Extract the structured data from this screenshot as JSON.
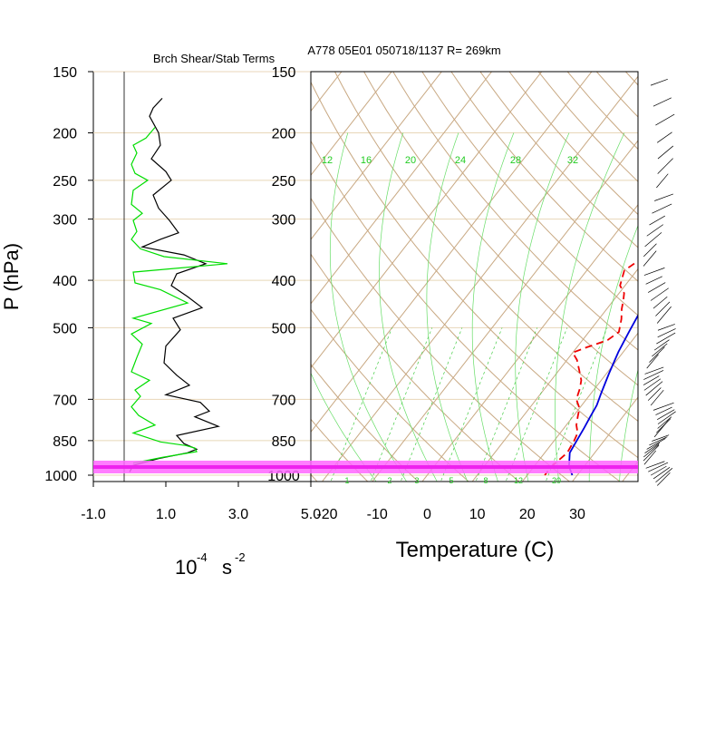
{
  "chart_data": [
    {
      "type": "line",
      "title": "Brch Shear/Stab Terms",
      "units_label": {
        "base": "10",
        "exp": "-4",
        "unit": "s",
        "unit_exp": "-2"
      },
      "ylabel": "P (hPa)",
      "xlim": [
        -1.0,
        5.0
      ],
      "ylim": [
        1050,
        150
      ],
      "yscale": "log",
      "xticks": [
        "-1.0",
        "1.0",
        "3.0",
        "5.0"
      ],
      "yticks": [
        "150",
        "200",
        "250",
        "300",
        "400",
        "500",
        "700",
        "850",
        "1000"
      ],
      "series": [
        {
          "color": "#000000",
          "points": [
            [
              0.9,
              170
            ],
            [
              0.65,
              178
            ],
            [
              0.55,
              185
            ],
            [
              0.8,
              200
            ],
            [
              0.85,
              212
            ],
            [
              0.6,
              226
            ],
            [
              1.0,
              240
            ],
            [
              1.15,
              250
            ],
            [
              0.65,
              268
            ],
            [
              0.8,
              285
            ],
            [
              1.1,
              302
            ],
            [
              1.35,
              320
            ],
            [
              0.85,
              330
            ],
            [
              0.35,
              342
            ],
            [
              1.5,
              355
            ],
            [
              2.1,
              370
            ],
            [
              1.3,
              388
            ],
            [
              1.15,
              410
            ],
            [
              1.6,
              432
            ],
            [
              2.0,
              455
            ],
            [
              1.2,
              478
            ],
            [
              1.4,
              505
            ],
            [
              1.0,
              545
            ],
            [
              0.95,
              590
            ],
            [
              1.3,
              625
            ],
            [
              1.65,
              655
            ],
            [
              1.0,
              685
            ],
            [
              1.95,
              710
            ],
            [
              2.2,
              740
            ],
            [
              1.8,
              760
            ],
            [
              2.45,
              795
            ],
            [
              1.3,
              830
            ],
            [
              1.5,
              862
            ],
            [
              1.85,
              885
            ],
            [
              1.6,
              900
            ],
            [
              0.8,
              925
            ],
            [
              0.1,
              955
            ],
            [
              0.0,
              985
            ]
          ]
        },
        {
          "color": "#00dd00",
          "points": [
            [
              0.7,
              195
            ],
            [
              0.45,
              205
            ],
            [
              0.1,
              212
            ],
            [
              0.2,
              220
            ],
            [
              0.05,
              232
            ],
            [
              0.15,
              242
            ],
            [
              0.5,
              250
            ],
            [
              0.1,
              262
            ],
            [
              0.05,
              280
            ],
            [
              0.35,
              292
            ],
            [
              0.1,
              302
            ],
            [
              0.2,
              318
            ],
            [
              0.05,
              330
            ],
            [
              0.3,
              345
            ],
            [
              0.95,
              358
            ],
            [
              2.7,
              370
            ],
            [
              0.1,
              385
            ],
            [
              0.15,
              405
            ],
            [
              0.85,
              418
            ],
            [
              1.6,
              445
            ],
            [
              0.1,
              478
            ],
            [
              0.6,
              490
            ],
            [
              0.05,
              515
            ],
            [
              0.35,
              540
            ],
            [
              0.2,
              575
            ],
            [
              0.05,
              615
            ],
            [
              0.55,
              640
            ],
            [
              0.15,
              670
            ],
            [
              0.3,
              690
            ],
            [
              0.05,
              725
            ],
            [
              0.25,
              755
            ],
            [
              0.7,
              790
            ],
            [
              0.1,
              820
            ],
            [
              0.85,
              855
            ],
            [
              1.55,
              870
            ],
            [
              1.8,
              880
            ],
            [
              1.85,
              895
            ],
            [
              0.9,
              920
            ],
            [
              0.1,
              945
            ]
          ]
        }
      ]
    },
    {
      "type": "line",
      "title": "A778 05E01 050718/1137 R= 269km",
      "xlabel": "Temperature (C)",
      "xlim": [
        -25,
        40
      ],
      "ylim": [
        1050,
        150
      ],
      "yscale": "log",
      "xticks": [
        "-20",
        "-10",
        "0",
        "10",
        "20",
        "30"
      ],
      "yticks": [
        "150",
        "200",
        "250",
        "300",
        "400",
        "500",
        "700",
        "850",
        "1000"
      ],
      "mixing_ratio_labels": [
        "12",
        "16",
        "20",
        "24",
        "28",
        "32"
      ],
      "mixing_ratio_bottom_labels": [
        "1",
        "2",
        "3",
        "5",
        "8",
        "12",
        "20"
      ],
      "series": [
        {
          "color": "#0000dd",
          "points": [
            [
              -2,
              168
            ],
            [
              0,
              182
            ],
            [
              2,
              200
            ],
            [
              4,
              220
            ],
            [
              6,
              242
            ],
            [
              8,
              268
            ],
            [
              10,
              290
            ],
            [
              11.5,
              310
            ],
            [
              12.5,
              330
            ],
            [
              14,
              355
            ],
            [
              15,
              385
            ],
            [
              16,
              420
            ],
            [
              17,
              460
            ],
            [
              18,
              510
            ],
            [
              19,
              560
            ],
            [
              20.5,
              620
            ],
            [
              22,
              680
            ],
            [
              23,
              720
            ],
            [
              23.5,
              760
            ],
            [
              24,
              800
            ],
            [
              24.5,
              850
            ],
            [
              25,
              900
            ],
            [
              27,
              960
            ],
            [
              29,
              1000
            ]
          ]
        },
        {
          "color": "#ee0000",
          "points": [
            [
              -8,
              198
            ],
            [
              -6,
              208
            ],
            [
              -3,
              222
            ],
            [
              0,
              240
            ],
            [
              2,
              262
            ],
            [
              3.5,
              280
            ],
            [
              4.2,
              298
            ],
            [
              5.5,
              318
            ],
            [
              8,
              340
            ],
            [
              9,
              362
            ],
            [
              7.5,
              382
            ],
            [
              9,
              410
            ],
            [
              11,
              425
            ],
            [
              12,
              440
            ],
            [
              13,
              458
            ],
            [
              14.5,
              480
            ],
            [
              16,
              510
            ],
            [
              15,
              530
            ],
            [
              12,
              548
            ],
            [
              10,
              562
            ],
            [
              12,
              582
            ],
            [
              14,
              610
            ],
            [
              16,
              640
            ],
            [
              17,
              665
            ],
            [
              18,
              700
            ],
            [
              20,
              730
            ],
            [
              21,
              760
            ],
            [
              22,
              790
            ],
            [
              23.5,
              820
            ],
            [
              24,
              850
            ],
            [
              24.5,
              900
            ],
            [
              23.5,
              960
            ],
            [
              23.5,
              1000
            ]
          ]
        }
      ],
      "wind_barb_levels": 55
    }
  ]
}
